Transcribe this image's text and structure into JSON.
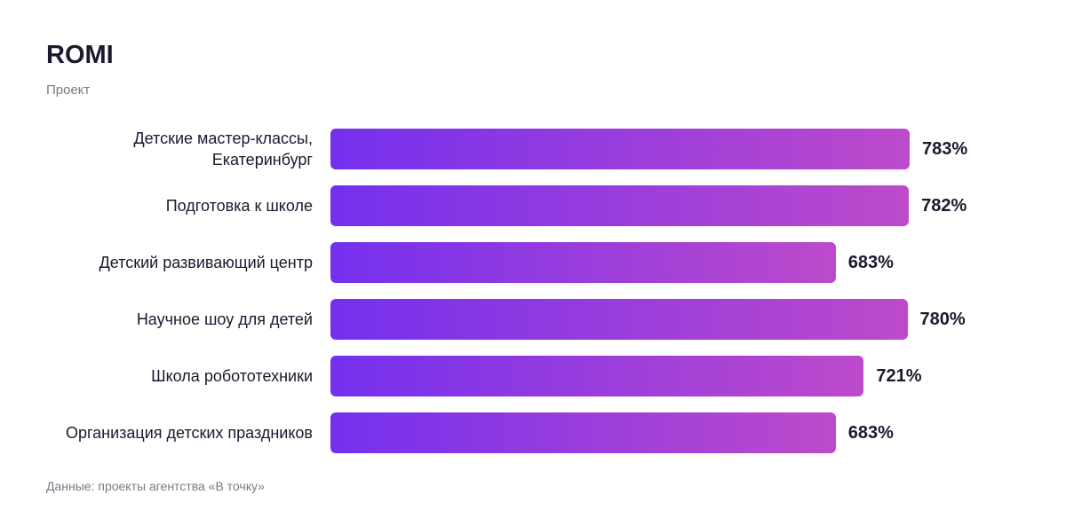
{
  "chart_data": {
    "type": "bar",
    "orientation": "horizontal",
    "title": "ROMI",
    "subtitle": "Проект",
    "source": "Данные: проекты агентства «В точку»",
    "categories": [
      "Детские мастер-классы, Екатеринбург",
      "Подготовка к школе",
      "Детский развивающий центр",
      "Научное шоу для детей",
      "Школа робототехники",
      "Организация детских праздников"
    ],
    "values": [
      783,
      782,
      683,
      780,
      721,
      683
    ],
    "value_labels": [
      "783%",
      "782%",
      "683%",
      "780%",
      "721%",
      "683%"
    ],
    "color": [
      "#7430ee",
      "#bd4acb"
    ]
  }
}
